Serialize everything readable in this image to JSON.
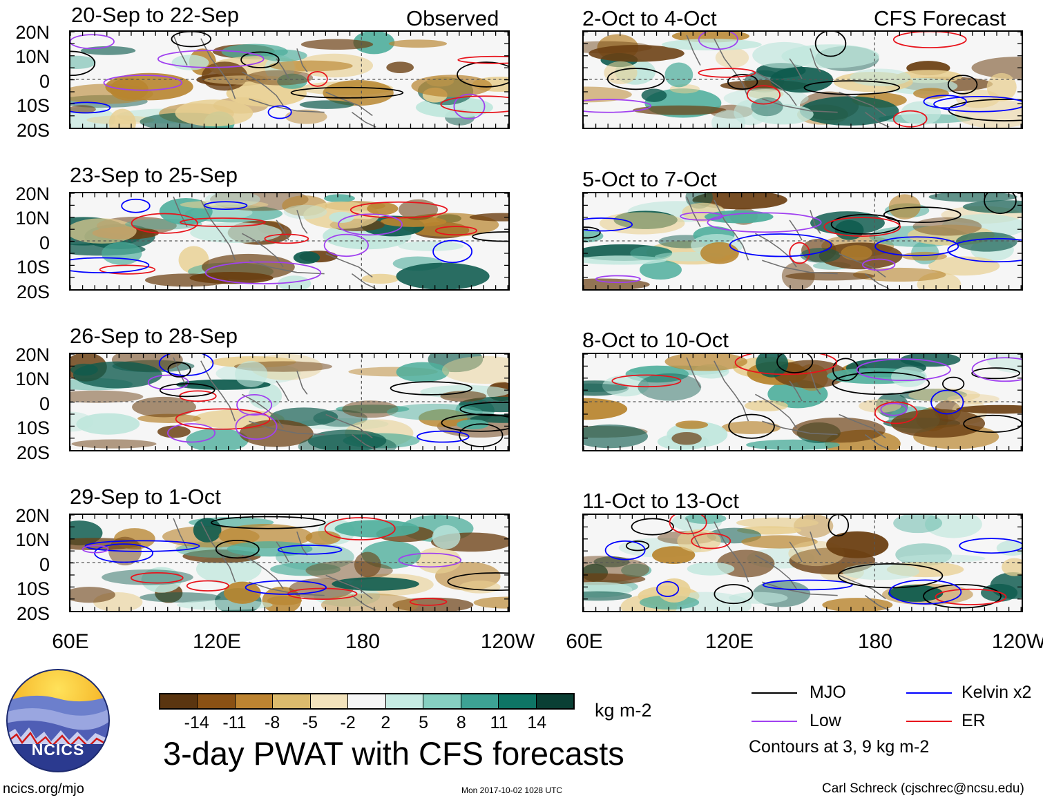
{
  "title": "3-day PWAT with CFS forecasts",
  "units": "kg m-2",
  "left_column_tag": "Observed",
  "right_column_tag": "CFS Forecast",
  "latitude_labels": [
    "20N",
    "10N",
    "0",
    "10S",
    "20S"
  ],
  "longitude_labels": [
    "60E",
    "120E",
    "180",
    "120W"
  ],
  "panels": {
    "observed": [
      {
        "label": "20-Sep to 22-Sep"
      },
      {
        "label": "23-Sep to 25-Sep"
      },
      {
        "label": "26-Sep to 28-Sep"
      },
      {
        "label": "29-Sep to 1-Oct"
      }
    ],
    "forecast": [
      {
        "label": "2-Oct to 4-Oct"
      },
      {
        "label": "5-Oct to 7-Oct"
      },
      {
        "label": "8-Oct to 10-Oct"
      },
      {
        "label": "11-Oct to 13-Oct"
      }
    ]
  },
  "colorbar": {
    "colors": [
      "#5a3510",
      "#8a5114",
      "#bd8431",
      "#dcbb6d",
      "#f3e3bc",
      "#f6f6f6",
      "#c6ebe3",
      "#86d0c1",
      "#3da294",
      "#0e7565",
      "#0a3f34"
    ],
    "tick_labels": [
      "-14",
      "-11",
      "-8",
      "-5",
      "-2",
      "2",
      "5",
      "8",
      "11",
      "14"
    ]
  },
  "legend": {
    "items": [
      {
        "label": "MJO",
        "color": "#000000"
      },
      {
        "label": "Kelvin x2",
        "color": "#0000ff"
      },
      {
        "label": "Low",
        "color": "#a040f0"
      },
      {
        "label": "ER",
        "color": "#e8141c"
      }
    ],
    "note": "Contours at 3, 9 kg m-2"
  },
  "logo": {
    "text": "NCICS"
  },
  "footer": {
    "url": "ncics.org/mjo",
    "timestamp": "Mon 2017-10-02 1028 UTC",
    "credit": "Carl Schreck (cjschrec@ncsu.edu)"
  },
  "colors": {
    "dry_strong": "#6b3f12",
    "dry": "#b8852f",
    "dry_light": "#e8cf91",
    "wet_light": "#bfe6dc",
    "wet": "#4fae9c",
    "wet_strong": "#0d5a4d",
    "coast": "#6f6f6f"
  }
}
